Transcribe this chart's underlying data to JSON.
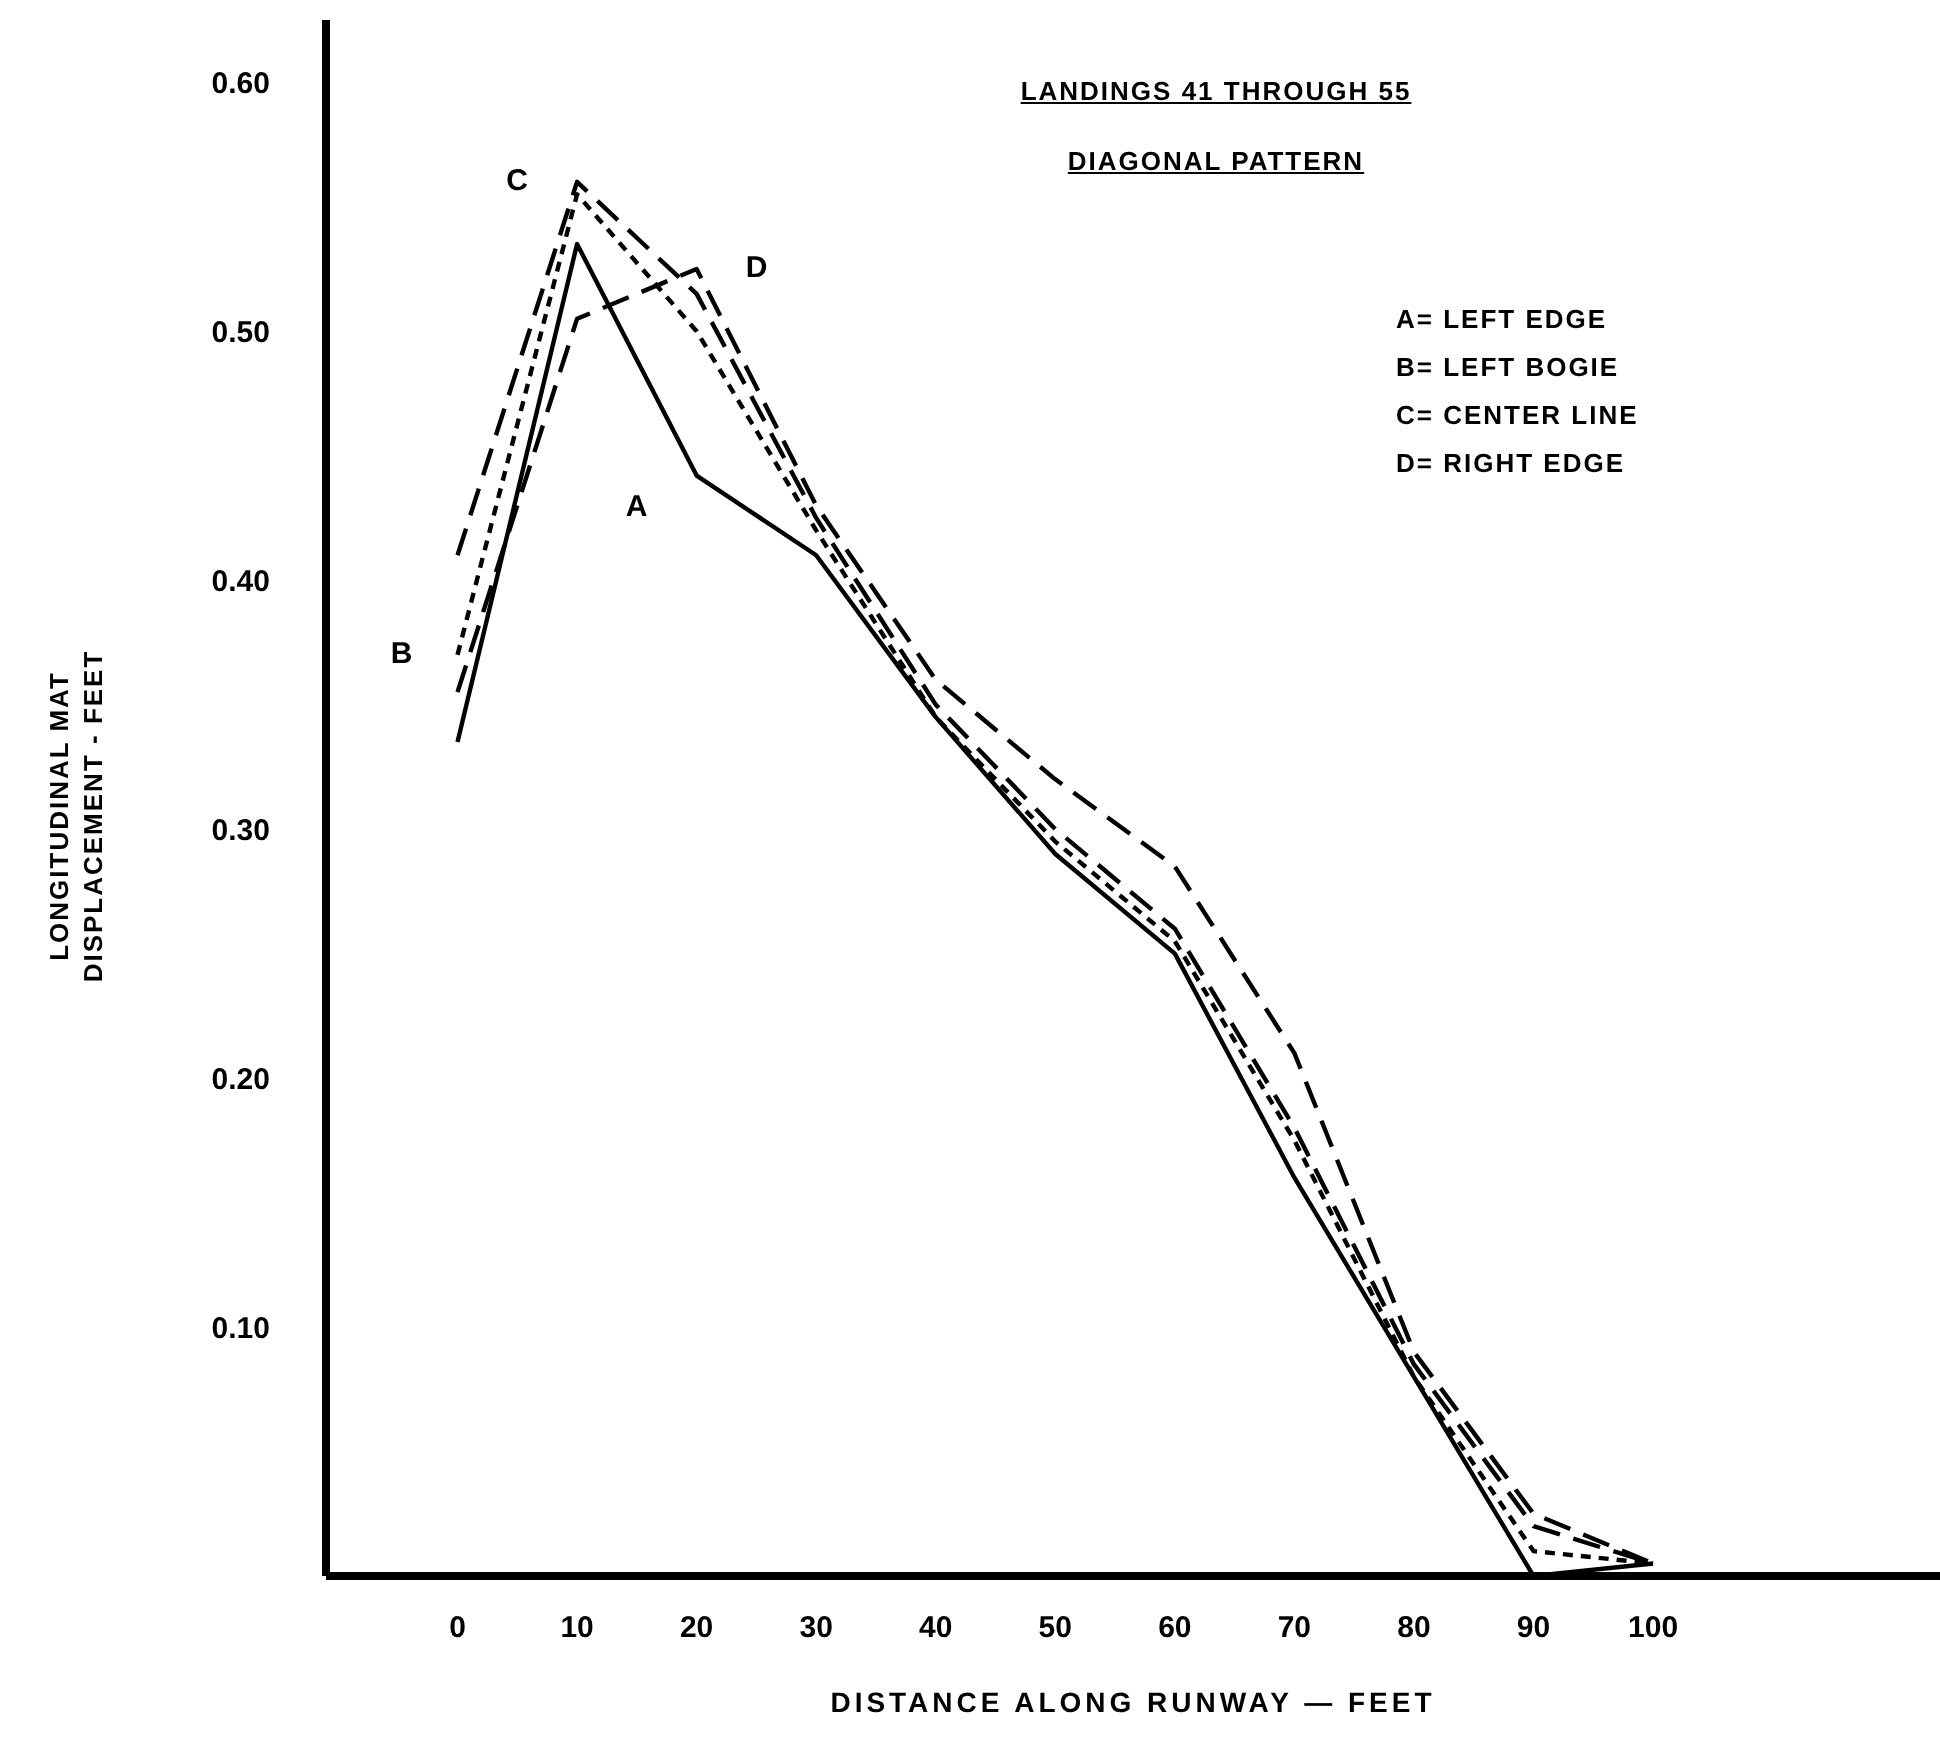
{
  "chart_data": {
    "type": "line",
    "title": "LANDINGS 41 THROUGH 55",
    "subtitle": "DIAGONAL PATTERN",
    "xlabel": "DISTANCE ALONG RUNWAY — FEET",
    "ylabel": "LONGITUDINAL MAT\nDISPLACEMENT - FEET",
    "x": [
      0,
      10,
      20,
      30,
      40,
      50,
      60,
      70,
      80,
      90,
      100
    ],
    "series": [
      {
        "name": "A",
        "color": "#000000",
        "line_style": "solid",
        "values": [
          0.335,
          0.535,
          0.442,
          0.41,
          0.345,
          0.29,
          0.25,
          0.16,
          0.08,
          0.0,
          0.005
        ]
      },
      {
        "name": "B",
        "color": "#000000",
        "line_style": "dotted",
        "values": [
          0.37,
          0.555,
          0.5,
          0.42,
          0.345,
          0.295,
          0.255,
          0.175,
          0.08,
          0.01,
          0.005
        ]
      },
      {
        "name": "C",
        "color": "#000000",
        "line_style": "dashed",
        "values": [
          0.41,
          0.56,
          0.515,
          0.425,
          0.35,
          0.3,
          0.26,
          0.18,
          0.085,
          0.02,
          0.005
        ]
      },
      {
        "name": "D",
        "color": "#000000",
        "line_style": "dashed",
        "values": [
          0.355,
          0.505,
          0.525,
          0.43,
          0.36,
          0.32,
          0.285,
          0.21,
          0.09,
          0.025,
          0.005
        ]
      }
    ],
    "annotations": [
      "A= LEFT EDGE",
      "B= LEFT BOGIE",
      "C= CENTER LINE",
      "D= RIGHT EDGE"
    ],
    "xlim": [
      -11,
      124
    ],
    "xticks": [
      0,
      10,
      20,
      30,
      40,
      50,
      60,
      70,
      80,
      90,
      100
    ],
    "ylim": [
      0,
      0.625
    ],
    "yticks": [
      {
        "value": 0.1,
        "label": "0.10"
      },
      {
        "value": 0.2,
        "label": "0.20"
      },
      {
        "value": 0.3,
        "label": "0.30"
      },
      {
        "value": 0.4,
        "label": "0.40"
      },
      {
        "value": 0.5,
        "label": "0.50"
      },
      {
        "value": 0.6,
        "label": "0.60"
      }
    ],
    "grid": false,
    "legend": false,
    "marker": "none"
  }
}
